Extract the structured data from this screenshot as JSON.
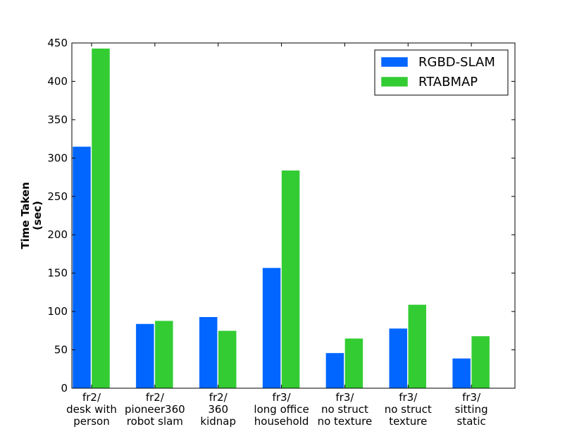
{
  "chart_data": {
    "type": "bar",
    "title": "",
    "xlabel": "",
    "ylabel": [
      "Time Taken",
      "(sec)"
    ],
    "ylim": [
      0,
      450
    ],
    "yticks": [
      0,
      50,
      100,
      150,
      200,
      250,
      300,
      350,
      400,
      450
    ],
    "categories": [
      [
        "fr2/",
        "desk with",
        "person"
      ],
      [
        "fr2/",
        "pioneer360",
        "robot slam"
      ],
      [
        "fr2/",
        "360",
        "kidnap"
      ],
      [
        "fr3/",
        "long office",
        "household"
      ],
      [
        "fr3/",
        "no struct",
        "no texture"
      ],
      [
        "fr3/",
        "no struct",
        "texture"
      ],
      [
        "fr3/",
        "sitting",
        "static"
      ]
    ],
    "series": [
      {
        "name": "RGBD-SLAM",
        "color": "#0066ff",
        "values": [
          315,
          84,
          93,
          157,
          46,
          78,
          39
        ]
      },
      {
        "name": "RTABMAP",
        "color": "#33cc33",
        "values": [
          443,
          88,
          75,
          284,
          65,
          109,
          68
        ]
      }
    ],
    "legend": "top-right",
    "grid": false
  }
}
